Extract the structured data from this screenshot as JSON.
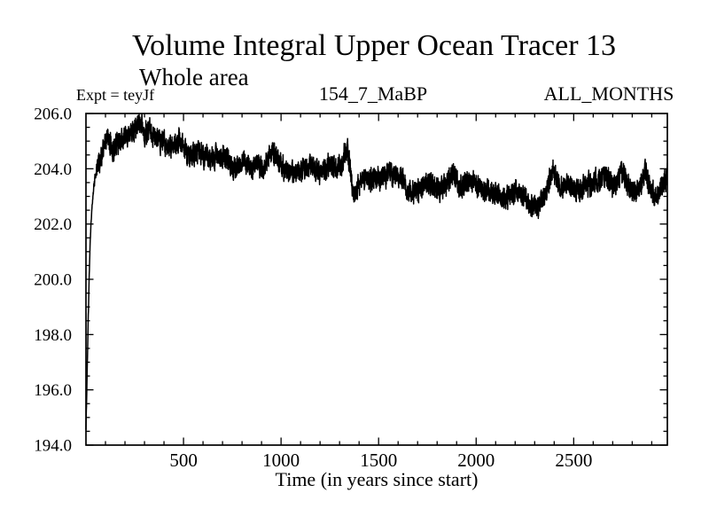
{
  "chart_data": {
    "type": "line",
    "title": "Volume Integral Upper Ocean Tracer 13",
    "subtitle": "Whole area",
    "annotations": [
      "Expt = teyJf",
      "154_7_MaBP",
      "ALL_MONTHS"
    ],
    "xlabel": "Time (in years since start)",
    "ylabel": "",
    "xlim": [
      0,
      2980
    ],
    "ylim": [
      194.0,
      206.0
    ],
    "x_major_ticks": [
      500,
      1000,
      1500,
      2000,
      2500
    ],
    "x_tick_labels": [
      "500",
      "1000",
      "1500",
      "2000",
      "2500"
    ],
    "x_minor_step": 100,
    "y_major_ticks": [
      194,
      196,
      198,
      200,
      202,
      204,
      206
    ],
    "y_tick_labels": [
      "194.0",
      "196.0",
      "198.0",
      "200.0",
      "202.0",
      "204.0",
      "206.0"
    ],
    "y_minor_step": 0.5,
    "grid": false,
    "legend": false,
    "background": "#ffffff",
    "line_color": "#000000",
    "axis_color": "#000000",
    "series": [
      {
        "name": "Upper Ocean Tracer 13 volume integral",
        "noise_amplitude": 0.21,
        "noise_seed": 987654321,
        "samples_per_year": 2,
        "trend_keypoints": [
          [
            0,
            194.6
          ],
          [
            4,
            195.9
          ],
          [
            8,
            197.3
          ],
          [
            12,
            198.7
          ],
          [
            16,
            199.9
          ],
          [
            20,
            201.0
          ],
          [
            25,
            201.9
          ],
          [
            30,
            202.5
          ],
          [
            36,
            203.05
          ],
          [
            42,
            203.45
          ],
          [
            50,
            203.85
          ],
          [
            60,
            204.2
          ],
          [
            72,
            204.35
          ],
          [
            85,
            204.55
          ],
          [
            100,
            205.0
          ],
          [
            110,
            205.15
          ],
          [
            125,
            204.85
          ],
          [
            140,
            204.75
          ],
          [
            155,
            204.9
          ],
          [
            170,
            205.0
          ],
          [
            185,
            205.05
          ],
          [
            200,
            205.15
          ],
          [
            215,
            205.3
          ],
          [
            230,
            205.1
          ],
          [
            245,
            205.2
          ],
          [
            260,
            205.5
          ],
          [
            272,
            205.75
          ],
          [
            285,
            205.55
          ],
          [
            300,
            205.3
          ],
          [
            315,
            205.3
          ],
          [
            330,
            205.45
          ],
          [
            345,
            205.25
          ],
          [
            360,
            205.15
          ],
          [
            380,
            205.05
          ],
          [
            400,
            204.95
          ],
          [
            420,
            204.85
          ],
          [
            440,
            204.85
          ],
          [
            460,
            204.9
          ],
          [
            480,
            205.0
          ],
          [
            500,
            204.85
          ],
          [
            515,
            204.6
          ],
          [
            530,
            204.45
          ],
          [
            545,
            204.5
          ],
          [
            560,
            204.55
          ],
          [
            580,
            204.6
          ],
          [
            600,
            204.55
          ],
          [
            620,
            204.45
          ],
          [
            640,
            204.35
          ],
          [
            660,
            204.4
          ],
          [
            680,
            204.4
          ],
          [
            700,
            204.5
          ],
          [
            715,
            204.45
          ],
          [
            730,
            204.25
          ],
          [
            745,
            204.1
          ],
          [
            760,
            204.0
          ],
          [
            775,
            204.1
          ],
          [
            790,
            204.15
          ],
          [
            805,
            204.2
          ],
          [
            820,
            204.2
          ],
          [
            835,
            204.15
          ],
          [
            850,
            204.1
          ],
          [
            865,
            204.15
          ],
          [
            880,
            204.2
          ],
          [
            895,
            204.05
          ],
          [
            910,
            203.9
          ],
          [
            925,
            204.25
          ],
          [
            940,
            204.6
          ],
          [
            955,
            204.7
          ],
          [
            970,
            204.45
          ],
          [
            985,
            204.3
          ],
          [
            1000,
            204.15
          ],
          [
            1015,
            204.0
          ],
          [
            1030,
            203.95
          ],
          [
            1050,
            203.85
          ],
          [
            1070,
            203.85
          ],
          [
            1090,
            203.9
          ],
          [
            1110,
            203.95
          ],
          [
            1130,
            204.0
          ],
          [
            1150,
            204.1
          ],
          [
            1165,
            204.15
          ],
          [
            1180,
            203.95
          ],
          [
            1195,
            203.85
          ],
          [
            1210,
            203.9
          ],
          [
            1225,
            203.95
          ],
          [
            1240,
            204.1
          ],
          [
            1255,
            204.2
          ],
          [
            1270,
            204.05
          ],
          [
            1285,
            203.9
          ],
          [
            1300,
            204.05
          ],
          [
            1315,
            204.25
          ],
          [
            1330,
            204.55
          ],
          [
            1340,
            204.65
          ],
          [
            1352,
            204.1
          ],
          [
            1365,
            203.4
          ],
          [
            1375,
            203.1
          ],
          [
            1390,
            203.35
          ],
          [
            1405,
            203.55
          ],
          [
            1420,
            203.65
          ],
          [
            1440,
            203.6
          ],
          [
            1460,
            203.55
          ],
          [
            1480,
            203.6
          ],
          [
            1500,
            203.65
          ],
          [
            1520,
            203.7
          ],
          [
            1540,
            203.75
          ],
          [
            1560,
            203.8
          ],
          [
            1580,
            203.85
          ],
          [
            1600,
            203.9
          ],
          [
            1615,
            203.7
          ],
          [
            1630,
            203.45
          ],
          [
            1645,
            203.2
          ],
          [
            1660,
            203.1
          ],
          [
            1675,
            203.15
          ],
          [
            1690,
            203.2
          ],
          [
            1705,
            203.25
          ],
          [
            1720,
            203.35
          ],
          [
            1740,
            203.5
          ],
          [
            1760,
            203.6
          ],
          [
            1775,
            203.45
          ],
          [
            1790,
            203.3
          ],
          [
            1805,
            203.15
          ],
          [
            1820,
            203.25
          ],
          [
            1840,
            203.4
          ],
          [
            1860,
            203.55
          ],
          [
            1875,
            203.85
          ],
          [
            1885,
            203.95
          ],
          [
            1895,
            203.65
          ],
          [
            1910,
            203.45
          ],
          [
            1925,
            203.35
          ],
          [
            1945,
            203.5
          ],
          [
            1965,
            203.65
          ],
          [
            1980,
            203.55
          ],
          [
            1995,
            203.45
          ],
          [
            2010,
            203.35
          ],
          [
            2030,
            203.3
          ],
          [
            2050,
            203.25
          ],
          [
            2070,
            203.2
          ],
          [
            2090,
            203.15
          ],
          [
            2110,
            203.1
          ],
          [
            2130,
            203.0
          ],
          [
            2150,
            202.9
          ],
          [
            2165,
            203.0
          ],
          [
            2180,
            203.1
          ],
          [
            2195,
            203.15
          ],
          [
            2210,
            203.2
          ],
          [
            2225,
            203.1
          ],
          [
            2240,
            203.0
          ],
          [
            2255,
            202.9
          ],
          [
            2270,
            202.8
          ],
          [
            2285,
            202.7
          ],
          [
            2300,
            202.6
          ],
          [
            2312,
            202.55
          ],
          [
            2325,
            202.75
          ],
          [
            2340,
            202.95
          ],
          [
            2355,
            203.1
          ],
          [
            2370,
            203.35
          ],
          [
            2382,
            203.75
          ],
          [
            2392,
            204.05
          ],
          [
            2402,
            203.75
          ],
          [
            2415,
            203.5
          ],
          [
            2430,
            203.35
          ],
          [
            2450,
            203.3
          ],
          [
            2470,
            203.4
          ],
          [
            2490,
            203.3
          ],
          [
            2510,
            203.25
          ],
          [
            2530,
            203.2
          ],
          [
            2550,
            203.3
          ],
          [
            2570,
            203.4
          ],
          [
            2590,
            203.45
          ],
          [
            2610,
            203.55
          ],
          [
            2630,
            203.65
          ],
          [
            2650,
            203.75
          ],
          [
            2665,
            203.7
          ],
          [
            2680,
            203.55
          ],
          [
            2695,
            203.4
          ],
          [
            2710,
            203.45
          ],
          [
            2725,
            203.55
          ],
          [
            2740,
            203.75
          ],
          [
            2755,
            203.85
          ],
          [
            2768,
            203.6
          ],
          [
            2780,
            203.4
          ],
          [
            2795,
            203.25
          ],
          [
            2810,
            203.2
          ],
          [
            2825,
            203.25
          ],
          [
            2840,
            203.3
          ],
          [
            2855,
            203.6
          ],
          [
            2868,
            203.95
          ],
          [
            2880,
            203.6
          ],
          [
            2892,
            203.25
          ],
          [
            2905,
            203.1
          ],
          [
            2920,
            202.95
          ],
          [
            2935,
            203.05
          ],
          [
            2950,
            203.25
          ],
          [
            2965,
            203.5
          ],
          [
            2980,
            203.8
          ]
        ]
      }
    ]
  }
}
